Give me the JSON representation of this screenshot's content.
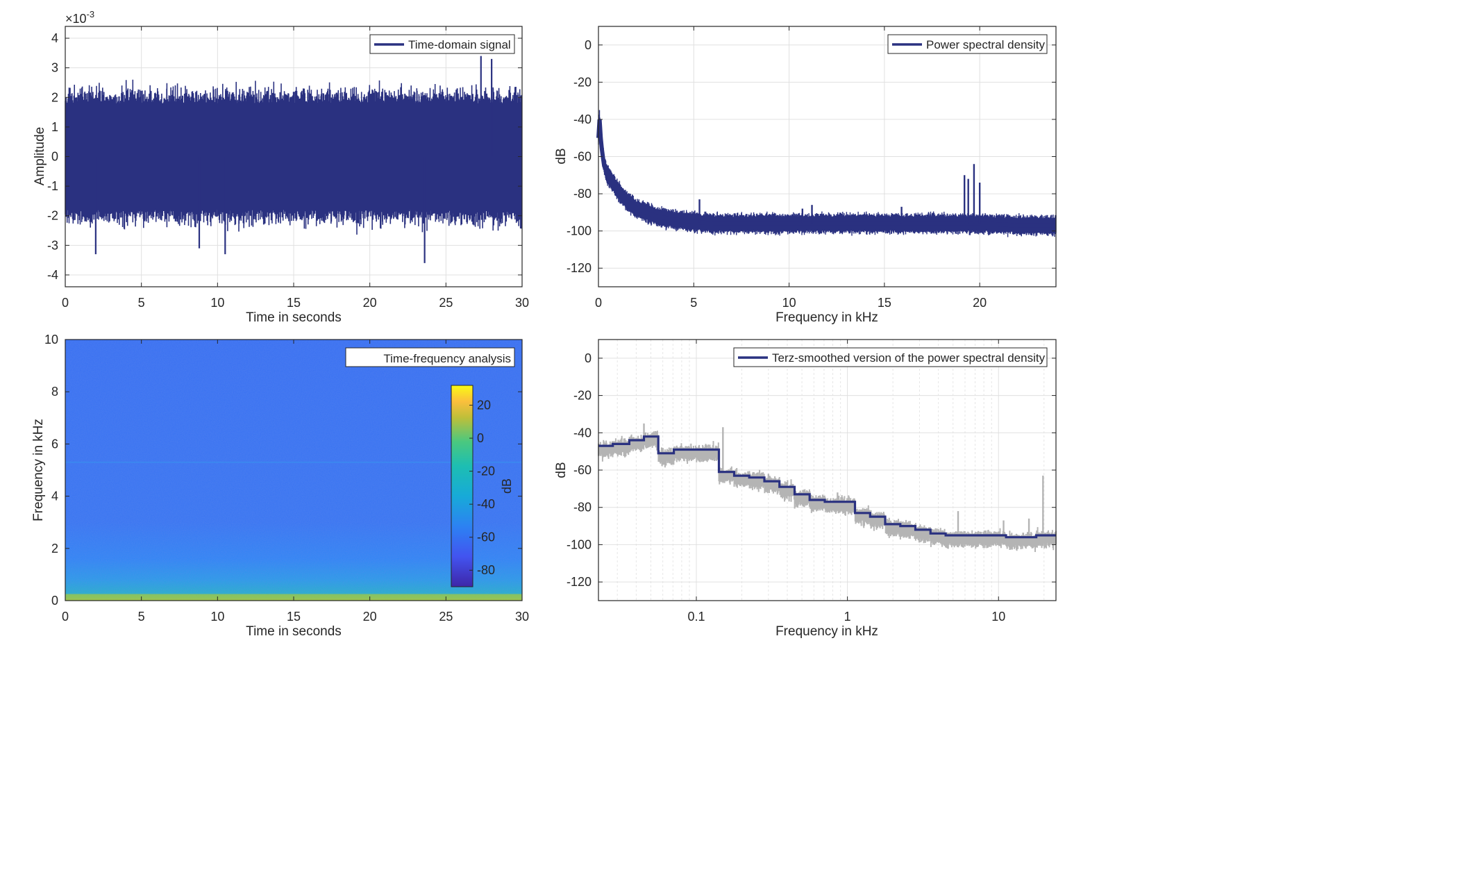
{
  "colors": {
    "series": "#2a3180",
    "raw": "#b4b4b4",
    "grid": "#e0e0e0",
    "axis": "#262626",
    "bg": "#ffffff"
  },
  "chart_data": [
    {
      "id": "time",
      "type": "line",
      "xlabel": "Time in seconds",
      "ylabel": "Amplitude",
      "exponent_label": "×10",
      "exponent_power": "-3",
      "legend": "Time-domain signal",
      "legend_position": "top-right",
      "xlim": [
        0,
        30
      ],
      "ylim": [
        -4.4,
        4.4
      ],
      "xticks": [
        0,
        5,
        10,
        15,
        20,
        25,
        30
      ],
      "yticks": [
        -4,
        -3,
        -2,
        -1,
        0,
        1,
        2,
        3,
        4
      ],
      "envelope": {
        "upper": 1.8,
        "lower": -1.8,
        "peak_max": 3.4,
        "peak_min": -3.6
      },
      "notable_peaks": [
        {
          "x": 2.0,
          "y": -3.3
        },
        {
          "x": 8.8,
          "y": -3.1
        },
        {
          "x": 10.5,
          "y": -3.3
        },
        {
          "x": 23.6,
          "y": -3.6
        },
        {
          "x": 27.3,
          "y": 3.4
        },
        {
          "x": 28.0,
          "y": 3.3
        }
      ],
      "grid": true
    },
    {
      "id": "psd",
      "type": "line",
      "xlabel": "Frequency in kHz",
      "ylabel": "dB",
      "legend": "Power spectral density",
      "legend_position": "top-right",
      "xlim": [
        0,
        24
      ],
      "ylim": [
        -130,
        10
      ],
      "xticks": [
        0,
        5,
        10,
        15,
        20
      ],
      "yticks": [
        0,
        -20,
        -40,
        -60,
        -80,
        -100,
        -120
      ],
      "x": [
        0,
        0.05,
        0.1,
        0.2,
        0.3,
        0.5,
        0.7,
        1.0,
        1.5,
        2.0,
        3.0,
        4.0,
        5.0,
        6.0,
        8.0,
        10.0,
        12.0,
        15.0,
        18.0,
        20.0,
        22.0,
        24.0
      ],
      "y": [
        -50,
        -38,
        -48,
        -58,
        -65,
        -70,
        -73,
        -78,
        -84,
        -88,
        -92,
        -94,
        -95,
        -96,
        -96,
        -96,
        -96,
        -96,
        -96,
        -96,
        -97,
        -97
      ],
      "band": 3.5,
      "spikes": [
        {
          "x": 5.3,
          "y": -83
        },
        {
          "x": 10.7,
          "y": -88
        },
        {
          "x": 11.2,
          "y": -86
        },
        {
          "x": 15.9,
          "y": -87
        },
        {
          "x": 19.2,
          "y": -70
        },
        {
          "x": 19.4,
          "y": -72
        },
        {
          "x": 19.7,
          "y": -64
        },
        {
          "x": 20.0,
          "y": -74
        }
      ],
      "grid": true
    },
    {
      "id": "spectrogram",
      "type": "heatmap",
      "xlabel": "Time in seconds",
      "ylabel": "Frequency in kHz",
      "legend": "Time-frequency analysis",
      "legend_position": "top-right",
      "xlim": [
        0,
        30
      ],
      "ylim": [
        0,
        10
      ],
      "xticks": [
        0,
        5,
        10,
        15,
        20,
        25,
        30
      ],
      "yticks": [
        0,
        2,
        4,
        6,
        8,
        10
      ],
      "colorbar": {
        "label": "dB",
        "range": [
          -90,
          32
        ],
        "ticks": [
          20,
          0,
          -20,
          -40,
          -60,
          -80
        ]
      },
      "levels": {
        "background": -62,
        "low_band_below_1kHz": -47,
        "low_band_below_0.3kHz": -28,
        "line_5.3kHz": -55
      },
      "grid": false
    },
    {
      "id": "terz",
      "type": "line",
      "xlabel": "Frequency in kHz",
      "ylabel": "dB",
      "legend": "Terz-smoothed version of the power spectral density",
      "legend_position": "top-right",
      "xscale": "log",
      "xlim": [
        0.0225,
        24
      ],
      "ylim": [
        -130,
        10
      ],
      "xticks": [
        0.1,
        1,
        10
      ],
      "xtick_labels": [
        "0.1",
        "1",
        "10"
      ],
      "yticks": [
        0,
        -20,
        -40,
        -60,
        -80,
        -100,
        -120
      ],
      "smoothed_steps": [
        {
          "x0": 0.0225,
          "x1": 0.028,
          "y": -47
        },
        {
          "x0": 0.028,
          "x1": 0.036,
          "y": -46
        },
        {
          "x0": 0.036,
          "x1": 0.045,
          "y": -44
        },
        {
          "x0": 0.045,
          "x1": 0.056,
          "y": -42
        },
        {
          "x0": 0.056,
          "x1": 0.071,
          "y": -51
        },
        {
          "x0": 0.071,
          "x1": 0.089,
          "y": -49
        },
        {
          "x0": 0.089,
          "x1": 0.112,
          "y": -49
        },
        {
          "x0": 0.112,
          "x1": 0.141,
          "y": -49
        },
        {
          "x0": 0.141,
          "x1": 0.178,
          "y": -61
        },
        {
          "x0": 0.178,
          "x1": 0.224,
          "y": -63
        },
        {
          "x0": 0.224,
          "x1": 0.282,
          "y": -64
        },
        {
          "x0": 0.282,
          "x1": 0.355,
          "y": -66
        },
        {
          "x0": 0.355,
          "x1": 0.447,
          "y": -69
        },
        {
          "x0": 0.447,
          "x1": 0.562,
          "y": -73
        },
        {
          "x0": 0.562,
          "x1": 0.708,
          "y": -76
        },
        {
          "x0": 0.708,
          "x1": 0.891,
          "y": -77
        },
        {
          "x0": 0.891,
          "x1": 1.122,
          "y": -77
        },
        {
          "x0": 1.122,
          "x1": 1.413,
          "y": -83
        },
        {
          "x0": 1.413,
          "x1": 1.778,
          "y": -85
        },
        {
          "x0": 1.778,
          "x1": 2.239,
          "y": -89
        },
        {
          "x0": 2.239,
          "x1": 2.818,
          "y": -90
        },
        {
          "x0": 2.818,
          "x1": 3.548,
          "y": -92
        },
        {
          "x0": 3.548,
          "x1": 4.467,
          "y": -94
        },
        {
          "x0": 4.467,
          "x1": 5.623,
          "y": -95
        },
        {
          "x0": 5.623,
          "x1": 7.079,
          "y": -95
        },
        {
          "x0": 7.079,
          "x1": 8.913,
          "y": -95
        },
        {
          "x0": 8.913,
          "x1": 11.22,
          "y": -95
        },
        {
          "x0": 11.22,
          "x1": 14.13,
          "y": -96
        },
        {
          "x0": 14.13,
          "x1": 17.78,
          "y": -96
        },
        {
          "x0": 17.78,
          "x1": 24.0,
          "y": -95
        }
      ],
      "raw_spikes": [
        {
          "x": 0.045,
          "y": -35
        },
        {
          "x": 0.069,
          "y": -50
        },
        {
          "x": 0.15,
          "y": -37
        },
        {
          "x": 0.3,
          "y": -62
        },
        {
          "x": 0.86,
          "y": -72
        },
        {
          "x": 1.55,
          "y": -85
        },
        {
          "x": 5.4,
          "y": -82
        },
        {
          "x": 10.8,
          "y": -87
        },
        {
          "x": 15.9,
          "y": -86
        },
        {
          "x": 19.7,
          "y": -63
        }
      ],
      "grid": true
    }
  ]
}
